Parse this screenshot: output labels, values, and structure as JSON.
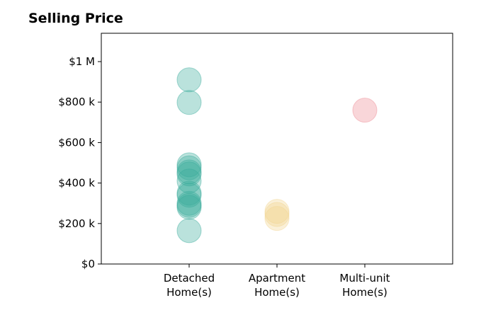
{
  "chart_data": {
    "type": "scatter",
    "title": "Selling Price",
    "xlabel": "",
    "ylabel": "",
    "categories": [
      {
        "line1": "Detached",
        "line2": "Home(s)"
      },
      {
        "line1": "Apartment",
        "line2": "Home(s)"
      },
      {
        "line1": "Multi-unit",
        "line2": "Home(s)"
      }
    ],
    "ylim": [
      0,
      1140000
    ],
    "y_ticks": [
      {
        "value": 0,
        "label": "$0"
      },
      {
        "value": 200000,
        "label": "$200 k"
      },
      {
        "value": 400000,
        "label": "$400 k"
      },
      {
        "value": 600000,
        "label": "$600 k"
      },
      {
        "value": 800000,
        "label": "$800 k"
      },
      {
        "value": 1000000,
        "label": "$1 M"
      }
    ],
    "grid": false,
    "series": [
      {
        "category_index": 0,
        "color": "#3aab9c",
        "values": [
          910000,
          798000,
          490000,
          475000,
          455000,
          445000,
          410000,
          350000,
          340000,
          300000,
          290000,
          280000,
          165000
        ]
      },
      {
        "category_index": 1,
        "color": "#f2d590",
        "values": [
          260000,
          245000,
          225000
        ]
      },
      {
        "category_index": 2,
        "color": "#ee8a93",
        "values": [
          760000
        ]
      }
    ]
  }
}
